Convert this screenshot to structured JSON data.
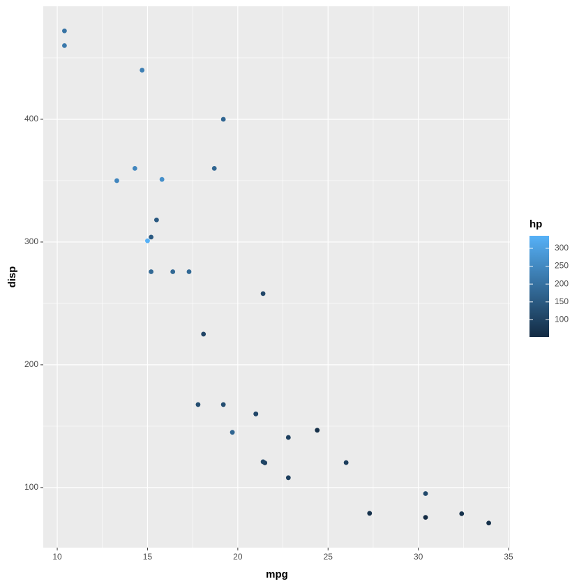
{
  "chart_data": {
    "type": "scatter",
    "xlabel": "mpg",
    "ylabel": "disp",
    "x": [
      21.0,
      21.0,
      22.8,
      21.4,
      18.7,
      18.1,
      14.3,
      24.4,
      22.8,
      19.2,
      17.8,
      16.4,
      17.3,
      15.2,
      10.4,
      10.4,
      14.7,
      32.4,
      30.4,
      33.9,
      21.5,
      15.5,
      15.2,
      13.3,
      19.2,
      27.3,
      26.0,
      30.4,
      15.8,
      19.7,
      15.0,
      21.4
    ],
    "y": [
      160,
      160,
      108,
      258,
      360,
      225,
      360,
      146.7,
      140.8,
      167.6,
      167.6,
      275.8,
      275.8,
      275.8,
      472,
      460,
      440,
      78.7,
      75.7,
      71.1,
      120.1,
      318,
      304,
      350,
      400,
      79,
      120.3,
      95.1,
      351,
      145,
      301,
      121
    ],
    "color_values": [
      110,
      110,
      93,
      110,
      175,
      105,
      245,
      62,
      95,
      123,
      123,
      180,
      180,
      180,
      205,
      215,
      230,
      66,
      52,
      65,
      97,
      150,
      150,
      245,
      175,
      66,
      91,
      113,
      264,
      175,
      335,
      109
    ],
    "xlim": [
      9.225,
      35.075
    ],
    "ylim": [
      51.055,
      492.045
    ],
    "xticks": [
      10,
      15,
      20,
      25,
      30,
      35
    ],
    "yticks": [
      100,
      200,
      300,
      400
    ],
    "grid": true,
    "legend_position": "right",
    "color_scale": {
      "title": "hp",
      "low": "#132B43",
      "high": "#56B1F7",
      "lim": [
        52,
        335
      ],
      "ticks": [
        100,
        150,
        200,
        250,
        300
      ]
    }
  }
}
